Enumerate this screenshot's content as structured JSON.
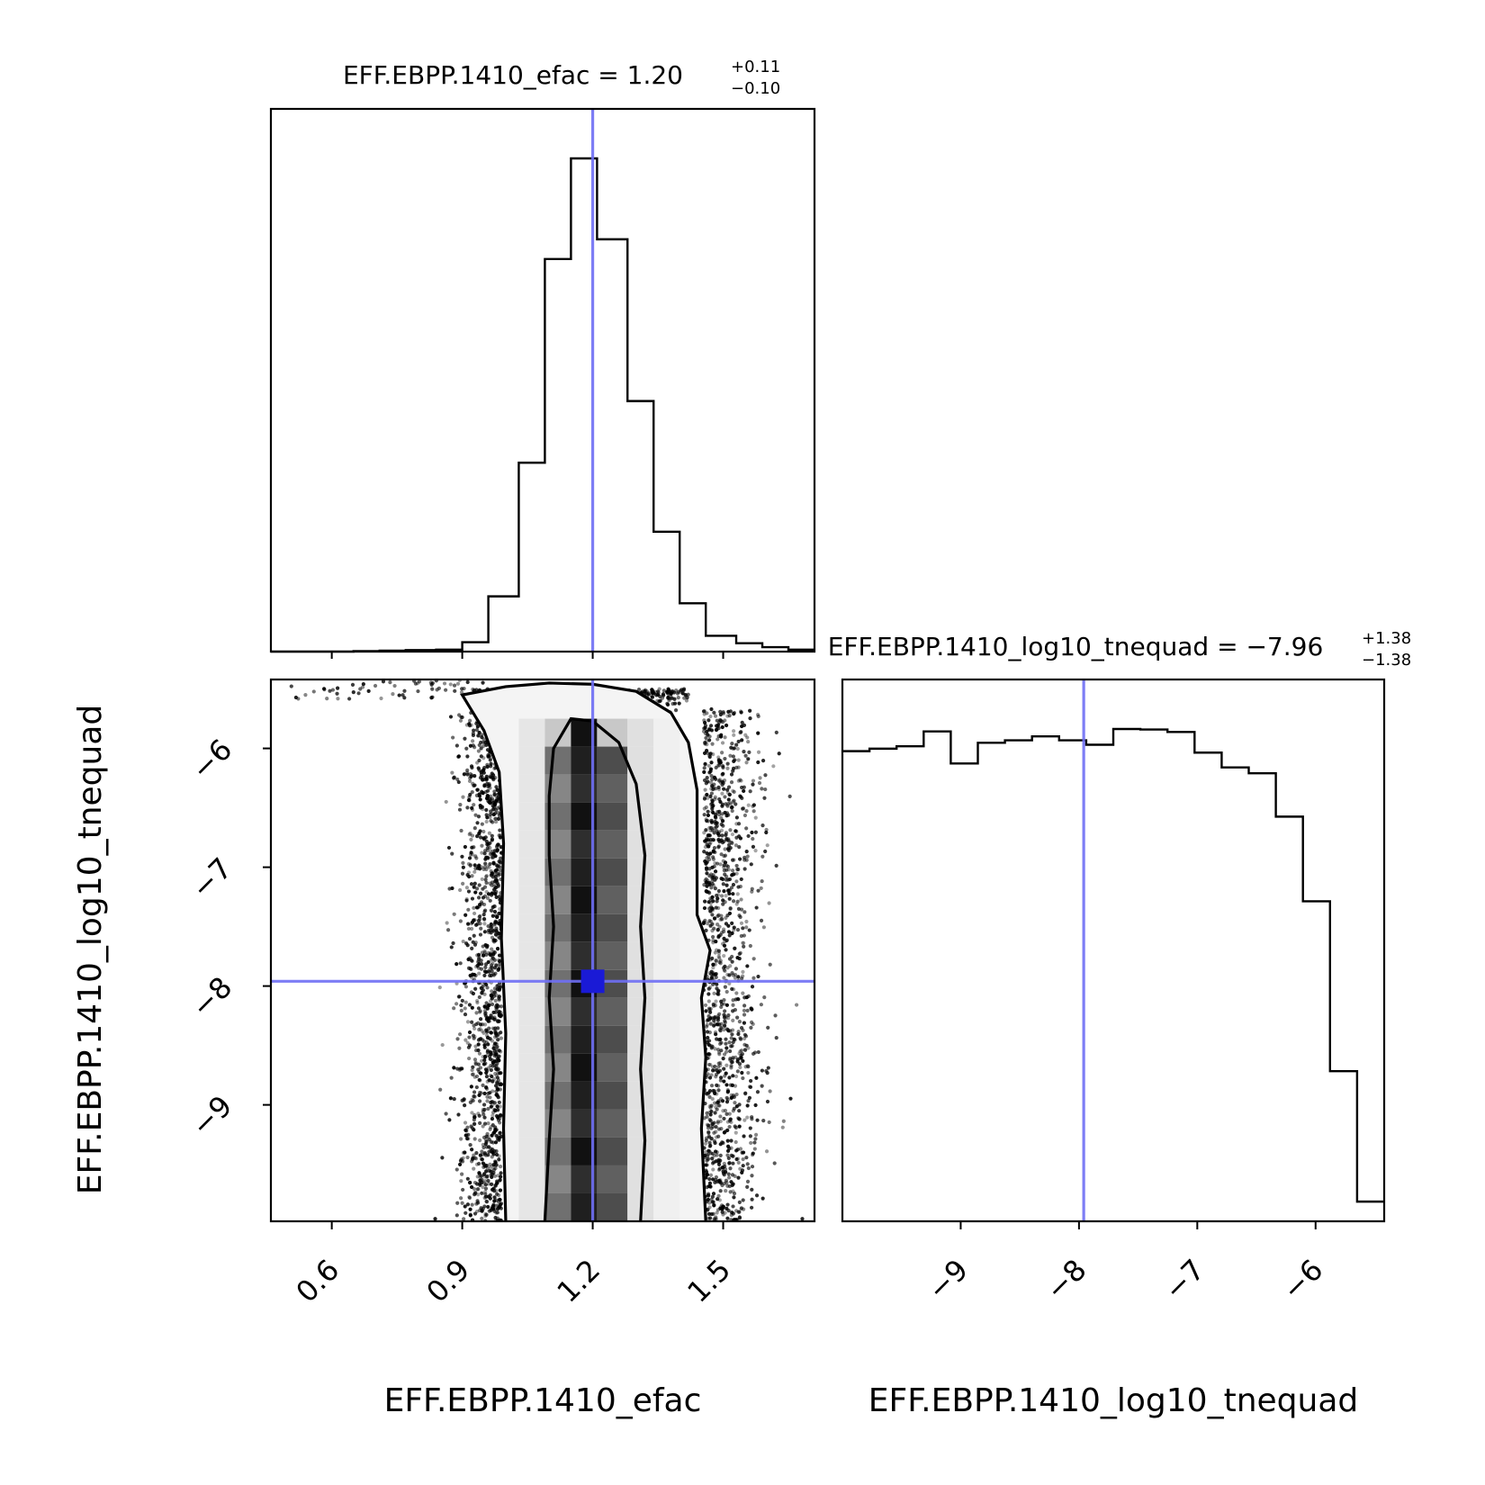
{
  "chart_data": [
    {
      "panel": "efac-histogram",
      "type": "histogram",
      "title_text": "EFF.EBPP.1410_efac = 1.20",
      "title_sup": "+0.11",
      "title_sub": "−0.10",
      "xlim": [
        0.46,
        1.71
      ],
      "bin_edges": [
        0.46,
        0.52,
        0.59,
        0.65,
        0.71,
        0.77,
        0.84,
        0.9,
        0.96,
        1.03,
        1.09,
        1.15,
        1.21,
        1.28,
        1.34,
        1.4,
        1.46,
        1.53,
        1.59,
        1.65,
        1.71
      ],
      "counts": [
        0.0,
        0.0,
        0.0,
        0.001,
        0.002,
        0.003,
        0.004,
        0.019,
        0.112,
        0.383,
        0.796,
        1.0,
        0.836,
        0.508,
        0.243,
        0.098,
        0.032,
        0.017,
        0.009,
        0.004
      ],
      "truth": 1.2
    },
    {
      "panel": "joint-2d",
      "type": "scatter",
      "xlabel": "EFF.EBPP.1410_efac",
      "ylabel": "EFF.EBPP.1410_log10_tnequad",
      "xlim": [
        0.46,
        1.71
      ],
      "ylim": [
        -9.98,
        -5.42
      ],
      "xticks": [
        "0.6",
        "0.9",
        "1.2",
        "1.5"
      ],
      "yticks": [
        "−6",
        "−7",
        "−8",
        "−9"
      ],
      "x_tick_values": [
        0.6,
        0.9,
        1.2,
        1.5
      ],
      "y_tick_values": [
        -6,
        -7,
        -8,
        -9
      ],
      "truth": [
        1.2,
        -7.96
      ],
      "contour_outer_left": [
        [
          1.0,
          -9.98
        ],
        [
          0.995,
          -9.2
        ],
        [
          1.0,
          -8.4
        ],
        [
          0.99,
          -7.6
        ],
        [
          0.995,
          -6.8
        ],
        [
          0.985,
          -6.2
        ],
        [
          0.95,
          -5.85
        ],
        [
          0.9,
          -5.55
        ],
        [
          1.0,
          -5.48
        ],
        [
          1.1,
          -5.45
        ],
        [
          1.2,
          -5.46
        ]
      ],
      "contour_outer_right": [
        [
          1.2,
          -5.46
        ],
        [
          1.3,
          -5.52
        ],
        [
          1.38,
          -5.7
        ],
        [
          1.42,
          -5.95
        ],
        [
          1.44,
          -6.35
        ],
        [
          1.44,
          -6.9
        ],
        [
          1.44,
          -7.4
        ],
        [
          1.47,
          -7.7
        ],
        [
          1.45,
          -8.1
        ],
        [
          1.46,
          -8.6
        ],
        [
          1.45,
          -9.2
        ],
        [
          1.46,
          -9.98
        ]
      ],
      "contour_inner": [
        [
          1.09,
          -9.98
        ],
        [
          1.1,
          -9.3
        ],
        [
          1.11,
          -8.7
        ],
        [
          1.1,
          -8.1
        ],
        [
          1.11,
          -7.5
        ],
        [
          1.1,
          -6.9
        ],
        [
          1.1,
          -6.4
        ],
        [
          1.11,
          -6.0
        ],
        [
          1.15,
          -5.75
        ],
        [
          1.2,
          -5.77
        ],
        [
          1.26,
          -5.95
        ],
        [
          1.3,
          -6.3
        ],
        [
          1.32,
          -6.9
        ],
        [
          1.31,
          -7.5
        ],
        [
          1.32,
          -8.1
        ],
        [
          1.31,
          -8.7
        ],
        [
          1.32,
          -9.3
        ],
        [
          1.31,
          -9.98
        ]
      ]
    },
    {
      "panel": "tnequad-histogram",
      "type": "histogram",
      "title_text": "EFF.EBPP.1410_log10_tnequad = −7.96",
      "title_sup": "+1.38",
      "title_sub": "−1.38",
      "xlabel": "EFF.EBPP.1410_log10_tnequad",
      "xlim": [
        -10.0,
        -5.42
      ],
      "xticks": [
        "−9",
        "−8",
        "−7",
        "−6"
      ],
      "x_tick_values": [
        -9,
        -8,
        -7,
        -6
      ],
      "bin_edges": [
        -10.0,
        -9.771,
        -9.542,
        -9.313,
        -9.084,
        -8.855,
        -8.626,
        -8.397,
        -8.168,
        -7.939,
        -7.71,
        -7.481,
        -7.252,
        -7.023,
        -6.794,
        -6.565,
        -6.336,
        -6.107,
        -5.878,
        -5.649,
        -5.42
      ],
      "counts": [
        0.955,
        0.96,
        0.965,
        0.995,
        0.93,
        0.972,
        0.977,
        0.985,
        0.977,
        0.968,
        1.0,
        0.999,
        0.994,
        0.952,
        0.922,
        0.91,
        0.822,
        0.65,
        0.305,
        0.04
      ],
      "truth": -7.96
    }
  ]
}
